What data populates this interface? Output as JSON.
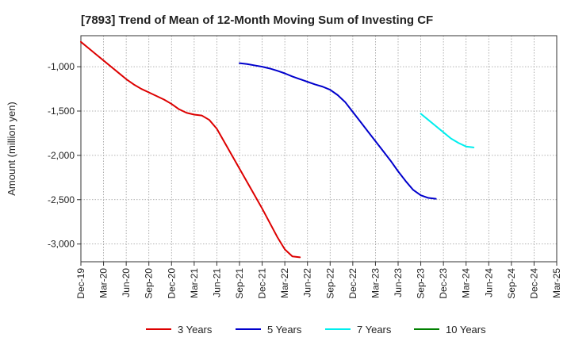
{
  "chart_data": {
    "type": "line",
    "title": "[7893]  Trend of Mean of 12-Month Moving Sum of Investing CF",
    "ylabel": "Amount (million yen)",
    "xlabel": "",
    "ylim": [
      -3200,
      -650
    ],
    "yticks": [
      -1000,
      -1500,
      -2000,
      -2500,
      -3000
    ],
    "ytick_labels": [
      "-1,000",
      "-1,500",
      "-2,000",
      "-2,500",
      "-3,000"
    ],
    "x_categories": [
      "Dec-19",
      "Mar-20",
      "Jun-20",
      "Sep-20",
      "Dec-20",
      "Mar-21",
      "Jun-21",
      "Sep-21",
      "Dec-21",
      "Mar-22",
      "Jun-22",
      "Sep-22",
      "Dec-22",
      "Mar-23",
      "Jun-23",
      "Sep-23",
      "Dec-23",
      "Mar-24",
      "Jun-24",
      "Sep-24",
      "Dec-24",
      "Mar-25"
    ],
    "grid": true,
    "legend_position": "bottom",
    "series": [
      {
        "name": "3 Years",
        "color": "#dd0000",
        "start_index": 0,
        "values": [
          -720,
          -790,
          -860,
          -930,
          -1000,
          -1070,
          -1140,
          -1200,
          -1250,
          -1290,
          -1330,
          -1370,
          -1420,
          -1480,
          -1520,
          -1540,
          -1550,
          -1600,
          -1700,
          -1850,
          -2000,
          -2150,
          -2300,
          -2450,
          -2600,
          -2760,
          -2920,
          -3060,
          -3140,
          -3150
        ]
      },
      {
        "name": "5 Years",
        "color": "#0000cc",
        "start_index": 21,
        "values": [
          -960,
          -970,
          -985,
          -1000,
          -1020,
          -1045,
          -1075,
          -1110,
          -1140,
          -1170,
          -1200,
          -1225,
          -1260,
          -1320,
          -1400,
          -1510,
          -1620,
          -1730,
          -1840,
          -1950,
          -2060,
          -2180,
          -2290,
          -2390,
          -2450,
          -2480,
          -2490
        ]
      },
      {
        "name": "7 Years",
        "color": "#00eeee",
        "start_index": 45,
        "values": [
          -1530,
          -1600,
          -1670,
          -1740,
          -1810,
          -1860,
          -1900,
          -1910
        ]
      },
      {
        "name": "10 Years",
        "color": "#008000",
        "start_index": 0,
        "values": []
      }
    ]
  }
}
